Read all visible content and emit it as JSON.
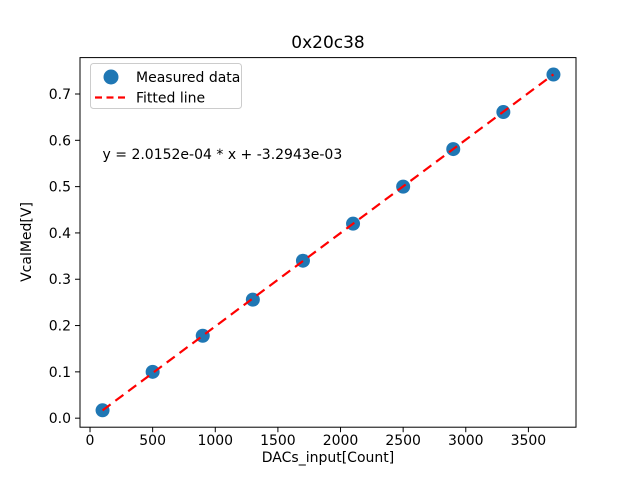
{
  "chart_data": {
    "type": "scatter",
    "title": "0x20c38",
    "xlabel": "DACs_input[Count]",
    "ylabel": "VcalMed[V]",
    "xlim": [
      -80,
      3880
    ],
    "ylim": [
      -0.0195,
      0.7786
    ],
    "x_ticks": [
      0,
      500,
      1000,
      1500,
      2000,
      2500,
      3000,
      3500
    ],
    "y_ticks": [
      0.0,
      0.1,
      0.2,
      0.3,
      0.4,
      0.5,
      0.6,
      0.7
    ],
    "grid": false,
    "background_color": "#ffffff",
    "axis_color": "#000000",
    "legend": {
      "position": "upper-left",
      "entries": [
        {
          "label": "Measured data",
          "glyph": "circle-marker",
          "color": "#1f77b4"
        },
        {
          "label": "Fitted line",
          "glyph": "dashed-line",
          "color": "#ff0000"
        }
      ]
    },
    "series": [
      {
        "name": "Measured data",
        "type": "scatter",
        "marker": "circle",
        "color": "#1f77b4",
        "x": [
          100,
          500,
          900,
          1300,
          1700,
          2100,
          2500,
          2900,
          3300,
          3700
        ],
        "y": [
          0.017,
          0.1,
          0.178,
          0.256,
          0.34,
          0.42,
          0.5,
          0.581,
          0.661,
          0.742
        ]
      },
      {
        "name": "Fitted line",
        "type": "line",
        "style": "dashed",
        "color": "#ff0000",
        "slope": 0.00020152,
        "intercept": -0.0032943,
        "x_start": 100,
        "x_end": 3700
      }
    ],
    "annotation": {
      "text": "y = 2.0152e-04 * x + -3.2943e-03",
      "x": 100,
      "y": 0.56
    }
  }
}
